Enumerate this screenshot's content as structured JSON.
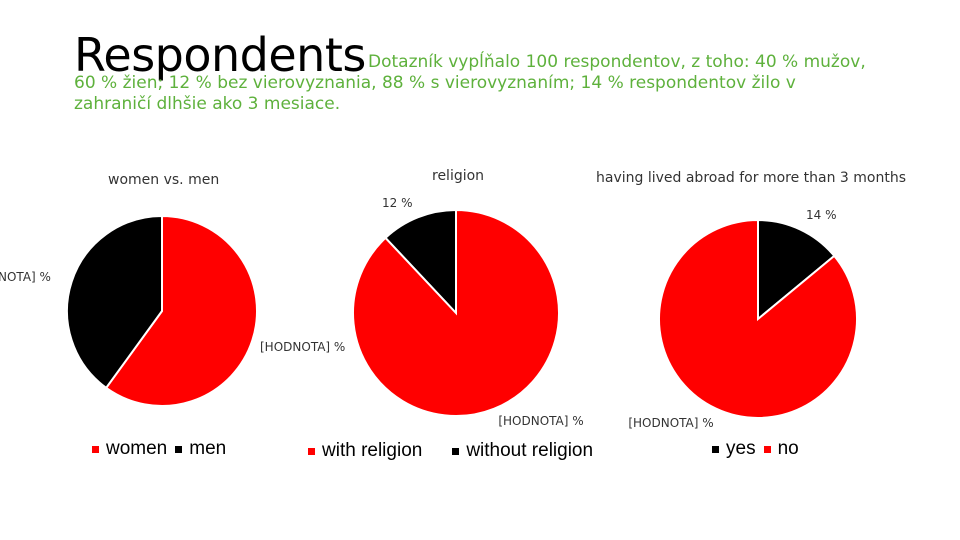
{
  "slide": {
    "title": "Respondents",
    "subtitle": "Dotazník vypĺňalo 100 respondentov, z toho: 40 % mužov, 60 % žien; 12 % bez vierovyznania, 88 % s vierovyznaním; 14 % respondentov žilo v zahraničí dlhšie ako 3 mesiace."
  },
  "colors": {
    "red": "#ff0000",
    "black": "#000000",
    "green": "#5eb13c"
  },
  "chart_data": [
    {
      "type": "pie",
      "title": "women vs. men",
      "categories": [
        "women",
        "men"
      ],
      "values": [
        60,
        40
      ],
      "colors": [
        "#ff0000",
        "#000000"
      ],
      "data_labels": [
        "",
        "NOTA] %"
      ],
      "legend": "bottom"
    },
    {
      "type": "pie",
      "title": "religion",
      "categories": [
        "with religion",
        "without religion"
      ],
      "values": [
        88,
        12
      ],
      "colors": [
        "#ff0000",
        "#000000"
      ],
      "data_labels": [
        "[HODNOTA] %",
        "12 %"
      ],
      "extra_label": "[HODNOTA] %",
      "legend": "bottom"
    },
    {
      "type": "pie",
      "title": "having lived abroad for more than 3 months",
      "categories": [
        "yes",
        "no"
      ],
      "values": [
        14,
        86
      ],
      "colors": [
        "#000000",
        "#ff0000"
      ],
      "data_labels": [
        "14 %",
        "[HODNOTA] %"
      ],
      "legend": "bottom"
    }
  ]
}
